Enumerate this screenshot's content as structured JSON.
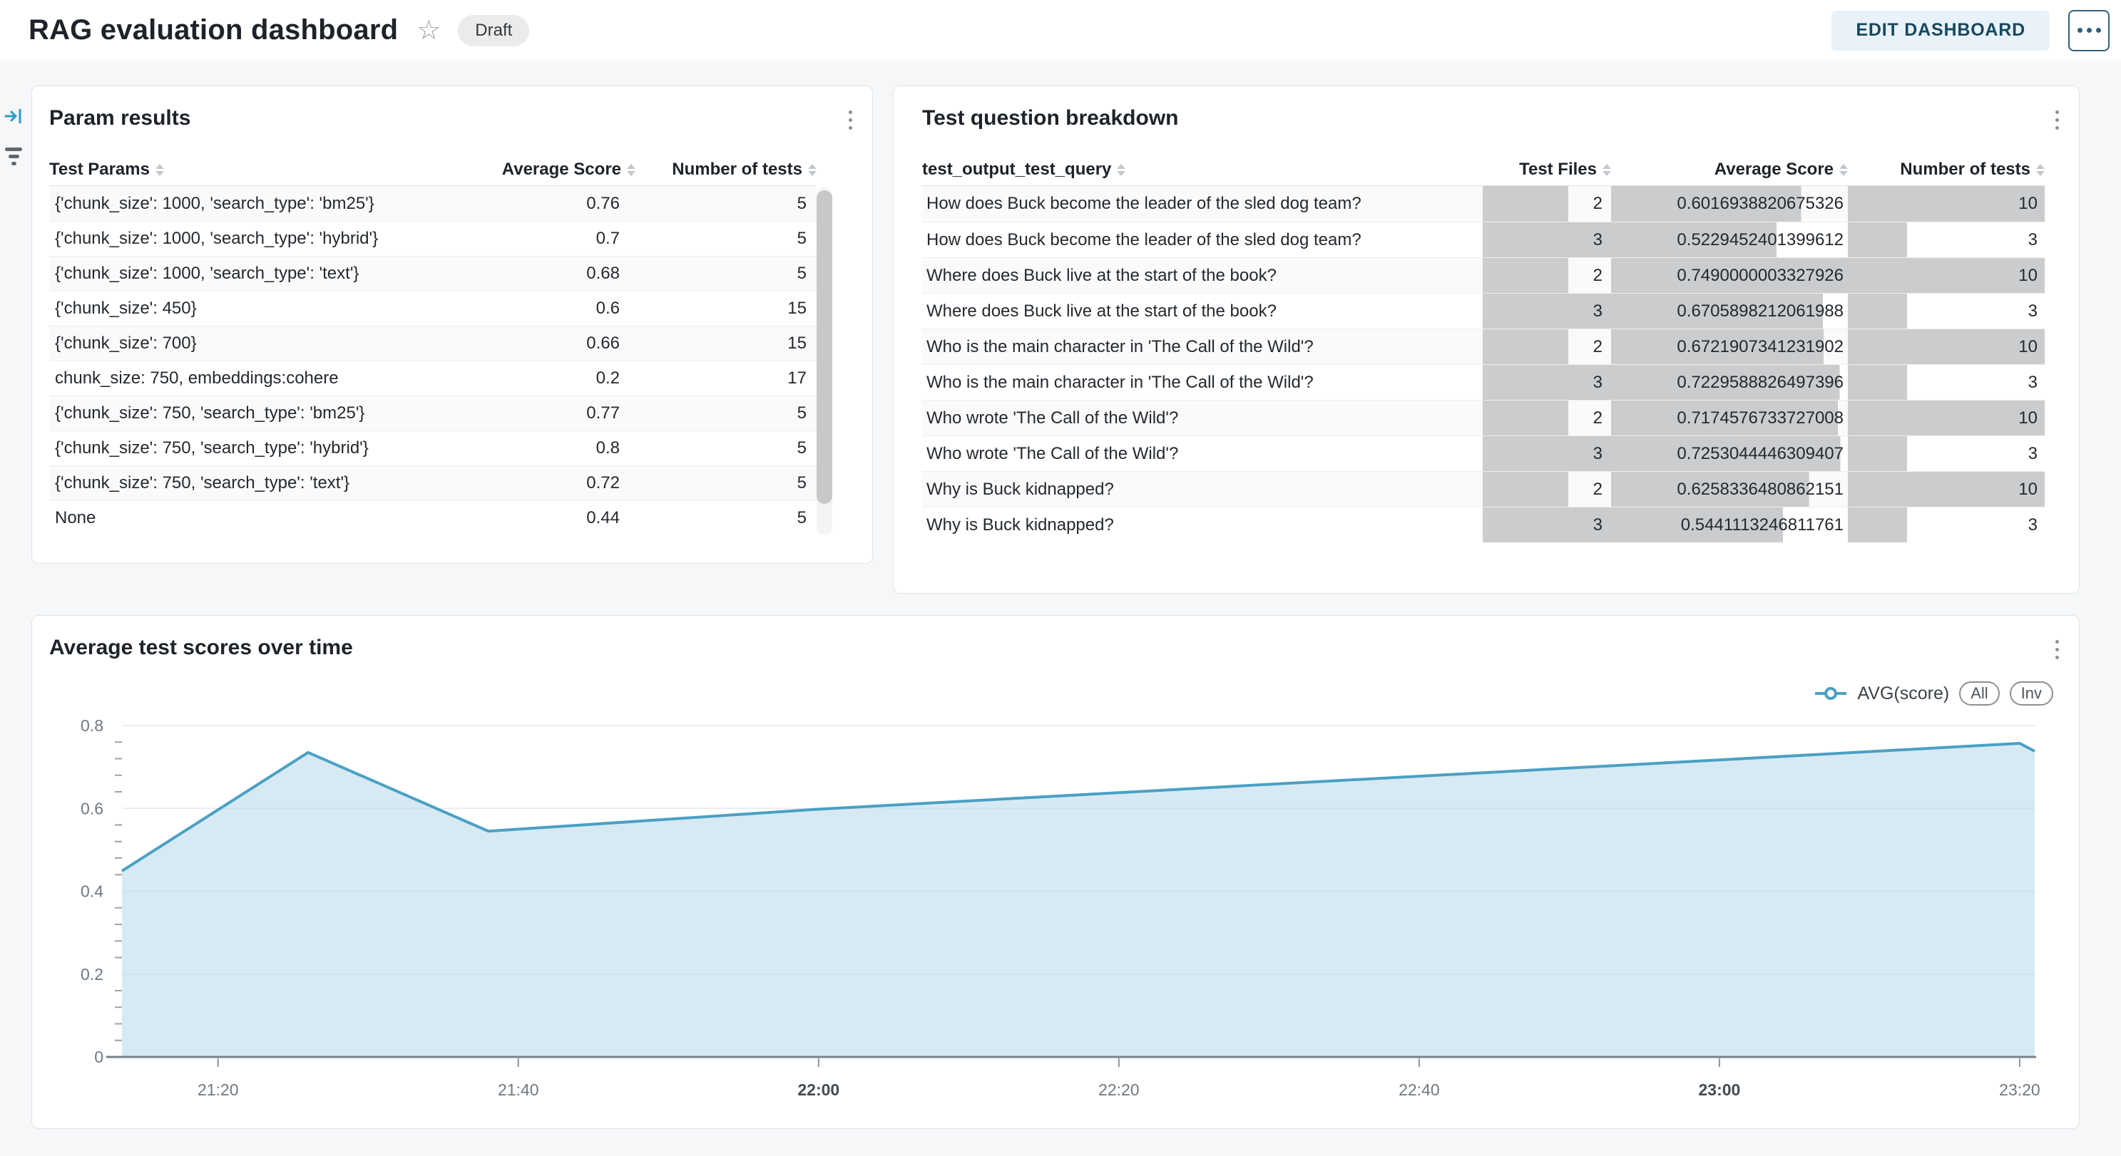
{
  "header": {
    "title": "RAG evaluation dashboard",
    "status_badge": "Draft",
    "edit_button": "EDIT DASHBOARD"
  },
  "param_results": {
    "title": "Param results",
    "columns": [
      "Test Params",
      "Average Score",
      "Number of tests"
    ],
    "rows": [
      {
        "params": "{'chunk_size': 1000, 'search_type': 'bm25'}",
        "avg_score": "0.76",
        "num_tests": "5"
      },
      {
        "params": "{'chunk_size': 1000, 'search_type': 'hybrid'}",
        "avg_score": "0.7",
        "num_tests": "5"
      },
      {
        "params": "{'chunk_size': 1000, 'search_type': 'text'}",
        "avg_score": "0.68",
        "num_tests": "5"
      },
      {
        "params": "{'chunk_size': 450}",
        "avg_score": "0.6",
        "num_tests": "15"
      },
      {
        "params": "{'chunk_size': 700}",
        "avg_score": "0.66",
        "num_tests": "15"
      },
      {
        "params": "chunk_size: 750, embeddings:cohere",
        "avg_score": "0.2",
        "num_tests": "17"
      },
      {
        "params": "{'chunk_size': 750, 'search_type': 'bm25'}",
        "avg_score": "0.77",
        "num_tests": "5"
      },
      {
        "params": "{'chunk_size': 750, 'search_type': 'hybrid'}",
        "avg_score": "0.8",
        "num_tests": "5"
      },
      {
        "params": "{'chunk_size': 750, 'search_type': 'text'}",
        "avg_score": "0.72",
        "num_tests": "5"
      },
      {
        "params": "None",
        "avg_score": "0.44",
        "num_tests": "5"
      }
    ]
  },
  "question_breakdown": {
    "title": "Test question breakdown",
    "columns": [
      "test_output_test_query",
      "Test Files",
      "Average Score",
      "Number of tests"
    ],
    "bar_maxima": {
      "files": 3,
      "score": 0.7490000003327926,
      "tests": 10
    },
    "rows": [
      {
        "query": "How does Buck become the leader of the sled dog team?",
        "files": 2,
        "score": "0.6016938820675326",
        "tests": 10
      },
      {
        "query": "How does Buck become the leader of the sled dog team?",
        "files": 3,
        "score": "0.5229452401399612",
        "tests": 3
      },
      {
        "query": "Where does Buck live at the start of the book?",
        "files": 2,
        "score": "0.7490000003327926",
        "tests": 10
      },
      {
        "query": "Where does Buck live at the start of the book?",
        "files": 3,
        "score": "0.6705898212061988",
        "tests": 3
      },
      {
        "query": "Who is the main character in 'The Call of the Wild'?",
        "files": 2,
        "score": "0.6721907341231902",
        "tests": 10
      },
      {
        "query": "Who is the main character in 'The Call of the Wild'?",
        "files": 3,
        "score": "0.7229588826497396",
        "tests": 3
      },
      {
        "query": "Who wrote 'The Call of the Wild'?",
        "files": 2,
        "score": "0.7174576733727008",
        "tests": 10
      },
      {
        "query": "Who wrote 'The Call of the Wild'?",
        "files": 3,
        "score": "0.7253044446309407",
        "tests": 3
      },
      {
        "query": "Why is Buck kidnapped?",
        "files": 2,
        "score": "0.6258336480862151",
        "tests": 10
      },
      {
        "query": "Why is Buck kidnapped?",
        "files": 3,
        "score": "0.5441113246811761",
        "tests": 3
      }
    ]
  },
  "chart_data": {
    "type": "area",
    "title": "Average test scores over time",
    "legend": {
      "label": "AVG(score)",
      "buttons": [
        "All",
        "Inv"
      ]
    },
    "x_unit": "minutes after 21:00",
    "points": [
      [
        13.6,
        0.449
      ],
      [
        26,
        0.735
      ],
      [
        38,
        0.545
      ],
      [
        60,
        0.598
      ],
      [
        90,
        0.658
      ],
      [
        120,
        0.717
      ],
      [
        140,
        0.757
      ],
      [
        141,
        0.738
      ]
    ],
    "x_ticks": [
      {
        "t": 20,
        "label": "21:20",
        "bold": false
      },
      {
        "t": 40,
        "label": "21:40",
        "bold": false
      },
      {
        "t": 60,
        "label": "22:00",
        "bold": true
      },
      {
        "t": 80,
        "label": "22:20",
        "bold": false
      },
      {
        "t": 100,
        "label": "22:40",
        "bold": false
      },
      {
        "t": 120,
        "label": "23:00",
        "bold": true
      },
      {
        "t": 140,
        "label": "23:20",
        "bold": false
      }
    ],
    "y_ticks": [
      {
        "v": 0,
        "label": "0"
      },
      {
        "v": 0.2,
        "label": "0.2"
      },
      {
        "v": 0.4,
        "label": "0.4"
      },
      {
        "v": 0.6,
        "label": "0.6"
      },
      {
        "v": 0.8,
        "label": "0.8"
      }
    ],
    "ylim": [
      0,
      0.8
    ],
    "xlim_minutes": [
      13.6,
      141
    ],
    "grid": "horizontal",
    "colors": {
      "line": "#4BA0C4",
      "fill": "rgba(183,216,233,0.55)",
      "grid": "#E8EAF1",
      "axis": "#76828C",
      "tick_label": "#70797F",
      "tick_label_bold": "#434B51"
    }
  }
}
